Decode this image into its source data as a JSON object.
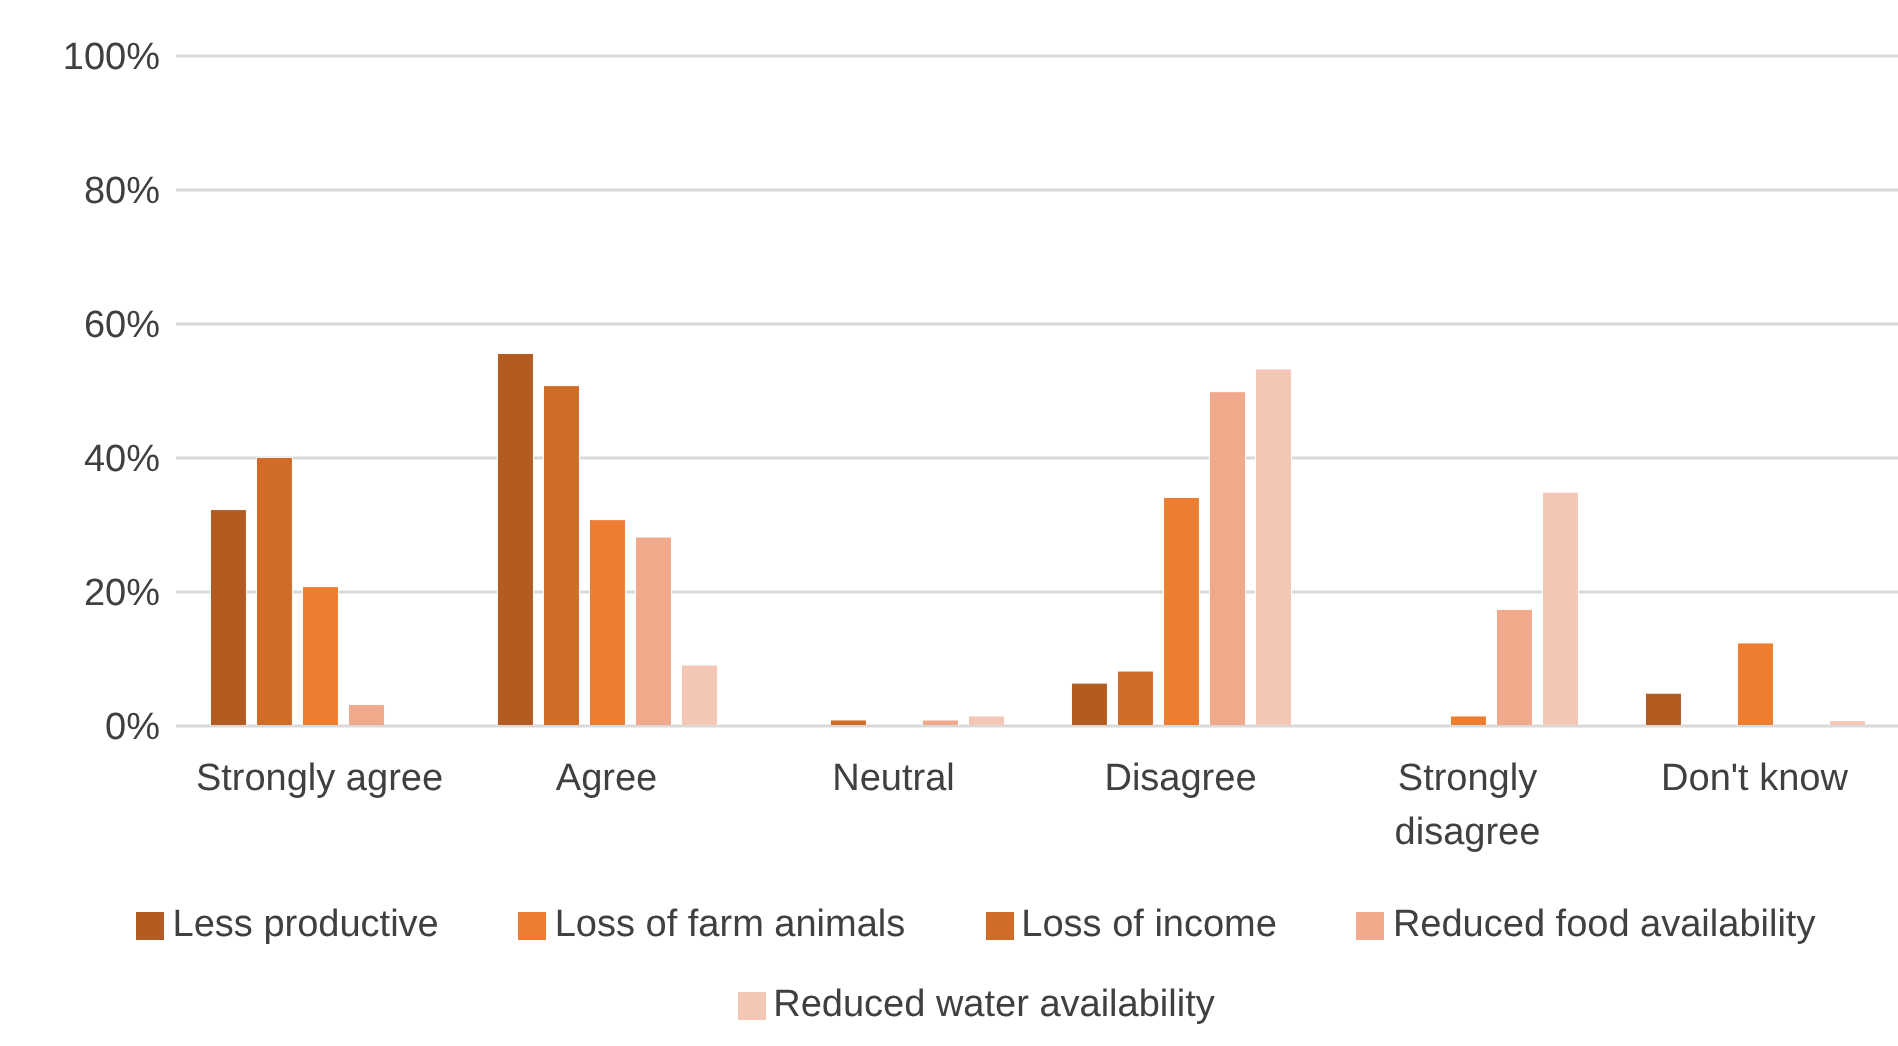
{
  "chart_data": {
    "type": "bar",
    "categories": [
      "Strongly agree",
      "Agree",
      "Neutral",
      "Disagree",
      "Strongly disagree",
      "Don't know"
    ],
    "series": [
      {
        "name": "Less productive",
        "color": "#b35c21",
        "values": [
          32.3,
          55.6,
          0,
          6.4,
          0,
          4.9
        ]
      },
      {
        "name": "Loss of income",
        "color": "#d16b28",
        "values": [
          40.1,
          50.8,
          0.9,
          8.2,
          0,
          0
        ]
      },
      {
        "name": "Loss of farm animals",
        "color": "#ed7d31",
        "values": [
          20.8,
          30.8,
          0,
          34.1,
          1.5,
          12.4
        ]
      },
      {
        "name": "Reduced food availability",
        "color": "#f0a98a",
        "values": [
          3.2,
          28.2,
          0.9,
          49.9,
          17.4,
          0
        ]
      },
      {
        "name": "Reduced water availability",
        "color": "#f4c6b6",
        "values": [
          0,
          9.1,
          1.5,
          53.3,
          34.9,
          0.8
        ]
      }
    ],
    "ylim": [
      0,
      100
    ],
    "yticks": [
      {
        "value": 0,
        "label": "0%"
      },
      {
        "value": 20,
        "label": "20%"
      },
      {
        "value": 40,
        "label": "40%"
      },
      {
        "value": 60,
        "label": "60%"
      },
      {
        "value": 80,
        "label": "80%"
      },
      {
        "value": 100,
        "label": "100%"
      }
    ],
    "grid": "y",
    "legend": "bottom"
  }
}
